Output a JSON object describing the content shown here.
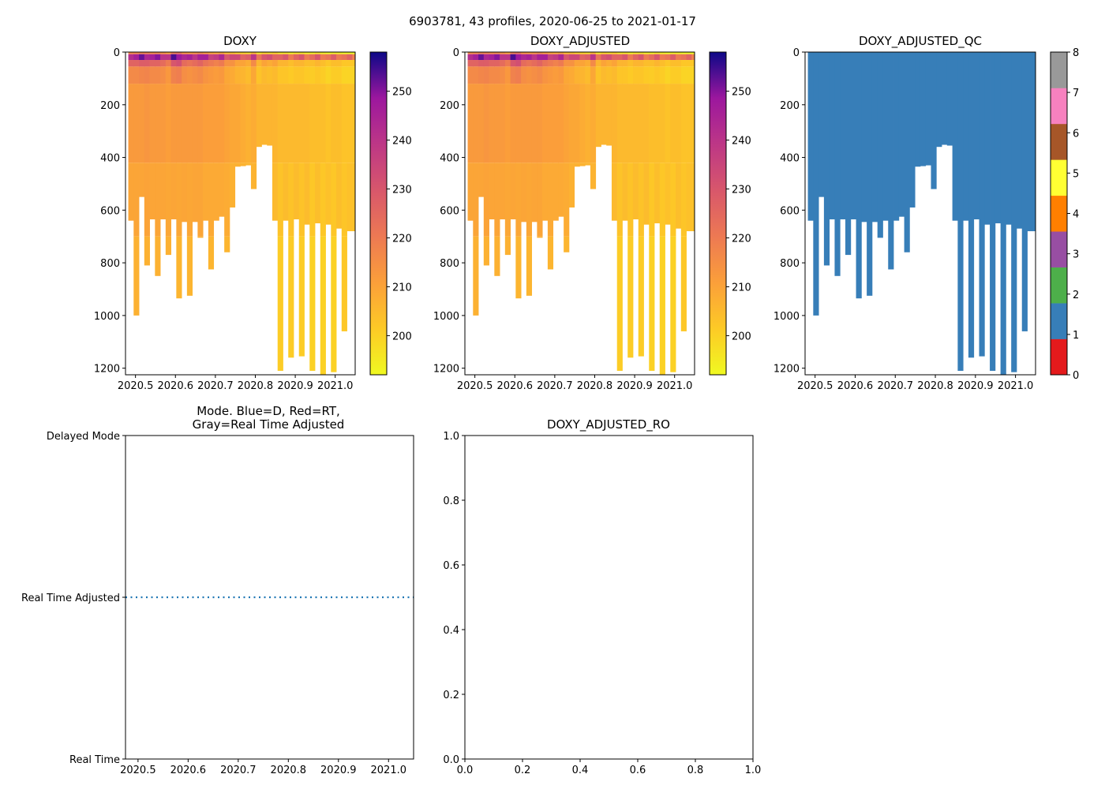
{
  "suptitle": "6903781, 43 profiles, 2020-06-25 to 2021-01-17",
  "chart_data": [
    {
      "id": "doxy",
      "type": "heatmap",
      "title": "DOXY",
      "xlim": [
        2020.475,
        2021.05
      ],
      "ylim": [
        1225,
        0
      ],
      "xticks": [
        2020.5,
        2020.6,
        2020.7,
        2020.8,
        2020.9,
        2021.0
      ],
      "xtick_labels": [
        "2020.5",
        "2020.6",
        "2020.7",
        "2020.8",
        "2020.9",
        "2021.0"
      ],
      "yticks": [
        0,
        200,
        400,
        600,
        800,
        1000,
        1200
      ],
      "ytick_labels": [
        "0",
        "200",
        "400",
        "600",
        "800",
        "1000",
        "1200"
      ],
      "colormap": "plasma_r",
      "colorbar": {
        "range": [
          192,
          258
        ],
        "ticks": [
          200,
          210,
          220,
          230,
          240,
          250
        ],
        "tick_labels": [
          "200",
          "210",
          "220",
          "230",
          "240",
          "250"
        ]
      }
    },
    {
      "id": "doxy_adjusted",
      "type": "heatmap",
      "title": "DOXY_ADJUSTED",
      "xlim": [
        2020.475,
        2021.05
      ],
      "ylim": [
        1225,
        0
      ],
      "xticks": [
        2020.5,
        2020.6,
        2020.7,
        2020.8,
        2020.9,
        2021.0
      ],
      "xtick_labels": [
        "2020.5",
        "2020.6",
        "2020.7",
        "2020.8",
        "2020.9",
        "2021.0"
      ],
      "yticks": [
        0,
        200,
        400,
        600,
        800,
        1000,
        1200
      ],
      "ytick_labels": [
        "0",
        "200",
        "400",
        "600",
        "800",
        "1000",
        "1200"
      ],
      "colormap": "plasma_r",
      "colorbar": {
        "range": [
          192,
          258
        ],
        "ticks": [
          200,
          210,
          220,
          230,
          240,
          250
        ],
        "tick_labels": [
          "200",
          "210",
          "220",
          "230",
          "240",
          "250"
        ]
      }
    },
    {
      "id": "doxy_adjusted_qc",
      "type": "heatmap",
      "title": "DOXY_ADJUSTED_QC",
      "xlim": [
        2020.475,
        2021.05
      ],
      "ylim": [
        1225,
        0
      ],
      "xticks": [
        2020.5,
        2020.6,
        2020.7,
        2020.8,
        2020.9,
        2021.0
      ],
      "xtick_labels": [
        "2020.5",
        "2020.6",
        "2020.7",
        "2020.8",
        "2020.9",
        "2021.0"
      ],
      "yticks": [
        0,
        200,
        400,
        600,
        800,
        1000,
        1200
      ],
      "ytick_labels": [
        "0",
        "200",
        "400",
        "600",
        "800",
        "1000",
        "1200"
      ],
      "qc_value": 1,
      "colorbar": {
        "range": [
          0,
          8
        ],
        "ticks": [
          0,
          1,
          2,
          3,
          4,
          5,
          6,
          7,
          8
        ],
        "tick_labels": [
          "0",
          "1",
          "2",
          "3",
          "4",
          "5",
          "6",
          "7",
          "8"
        ],
        "colors": [
          "#e41a1c",
          "#377eb8",
          "#4daf4a",
          "#984ea3",
          "#ff7f00",
          "#ffff33",
          "#a65628",
          "#f781bf",
          "#999999"
        ]
      }
    },
    {
      "id": "mode",
      "type": "line",
      "title_line1": "Mode. Blue=D, Red=RT,",
      "title_line2": "Gray=Real Time Adjusted",
      "xlim": [
        2020.475,
        2021.05
      ],
      "ylim": [
        0,
        2
      ],
      "xticks": [
        2020.5,
        2020.6,
        2020.7,
        2020.8,
        2020.9,
        2021.0
      ],
      "xtick_labels": [
        "2020.5",
        "2020.6",
        "2020.7",
        "2020.8",
        "2020.9",
        "2021.0"
      ],
      "yticks": [
        0,
        1,
        2
      ],
      "ytick_labels": [
        "Real Time",
        "Real Time Adjusted",
        "Delayed Mode"
      ],
      "series": [
        {
          "name": "mode",
          "style": "dotted",
          "color": "#1f77b4",
          "x": [
            2020.475,
            2021.05
          ],
          "y": [
            1,
            1
          ]
        }
      ]
    },
    {
      "id": "doxy_adjusted_ro",
      "type": "line",
      "title": "DOXY_ADJUSTED_RO",
      "xlim": [
        0,
        1
      ],
      "ylim": [
        0,
        1
      ],
      "xticks": [
        0,
        0.2,
        0.4,
        0.6,
        0.8,
        1.0
      ],
      "xtick_labels": [
        "0.0",
        "0.2",
        "0.4",
        "0.6",
        "0.8",
        "1.0"
      ],
      "yticks": [
        0,
        0.2,
        0.4,
        0.6,
        0.8,
        1.0
      ],
      "ytick_labels": [
        "0.0",
        "0.2",
        "0.4",
        "0.6",
        "0.8",
        "1.0"
      ],
      "series": []
    }
  ],
  "profiles": {
    "x_start": 2020.482,
    "x_step": 0.01335,
    "bottom_depth": [
      640,
      1000,
      550,
      810,
      635,
      850,
      635,
      770,
      635,
      935,
      645,
      925,
      645,
      705,
      640,
      825,
      640,
      625,
      760,
      590,
      435,
      433,
      430,
      520,
      360,
      352,
      355,
      640,
      1210,
      640,
      1160,
      635,
      1155,
      655,
      1210,
      650,
      1225,
      655,
      1215,
      670,
      1060,
      680,
      680
    ],
    "surface_doxy": [
      220,
      220,
      222,
      222,
      220,
      220,
      218,
      214,
      224,
      226,
      218,
      216,
      218,
      220,
      216,
      214,
      212,
      214,
      208,
      208,
      204,
      204,
      202,
      210,
      200,
      204,
      202,
      204,
      200,
      200,
      198,
      200,
      200,
      198,
      198,
      200,
      198,
      196,
      198,
      198,
      196,
      196,
      196
    ],
    "mid_doxy": [
      212,
      212,
      212,
      213,
      212,
      212,
      212,
      211,
      212,
      212,
      212,
      212,
      212,
      212,
      211,
      211,
      211,
      211,
      210,
      209,
      209,
      208,
      207,
      208,
      206,
      206,
      206,
      206,
      205,
      205,
      205,
      205,
      205,
      205,
      204,
      204,
      204,
      203,
      204,
      204,
      203,
      203,
      203
    ],
    "deep_doxy": [
      207,
      207,
      207,
      207,
      207,
      207,
      207,
      207,
      207,
      206,
      207,
      206,
      207,
      207,
      206,
      206,
      206,
      206,
      206,
      205,
      205,
      205,
      205,
      205,
      204,
      204,
      204,
      204,
      201,
      204,
      201,
      204,
      201,
      204,
      200,
      204,
      200,
      204,
      200,
      204,
      202,
      204,
      204
    ]
  }
}
